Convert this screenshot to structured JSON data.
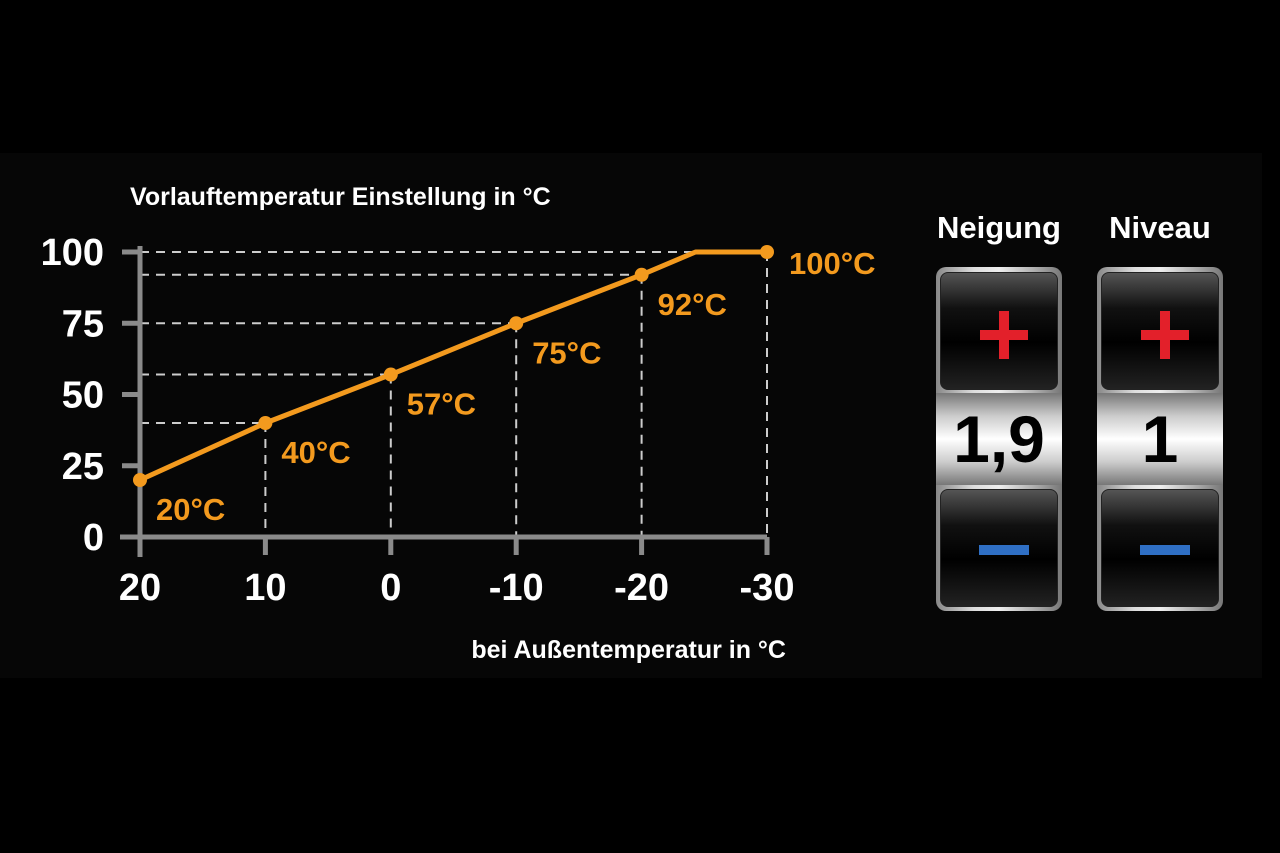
{
  "chart_data": {
    "type": "line",
    "title": "Vorlauftemperatur Einstellung in °C",
    "xlabel": "bei Außentemperatur in °C",
    "ylabel": "",
    "xlim": [
      20,
      -30
    ],
    "ylim": [
      0,
      100
    ],
    "x_ticks": [
      20,
      10,
      0,
      -10,
      -20,
      -30
    ],
    "x_tick_labels": [
      "20",
      "10",
      "0",
      "-10",
      "-20",
      "-30"
    ],
    "y_ticks": [
      0,
      25,
      50,
      75,
      100
    ],
    "y_tick_labels": [
      "0",
      "25",
      "50",
      "75",
      "100"
    ],
    "grid": "dashed guide lines to marked points",
    "series": [
      {
        "x": [
          20,
          10,
          0,
          -10,
          -20,
          -24.3,
          -30
        ],
        "y": [
          20,
          40,
          57,
          75,
          92,
          100,
          100
        ],
        "markers": [
          true,
          true,
          true,
          true,
          true,
          false,
          true
        ],
        "color": "#f39a1e"
      }
    ],
    "point_labels": [
      {
        "x": 20,
        "y": 20,
        "text": "20°C"
      },
      {
        "x": 10,
        "y": 40,
        "text": "40°C"
      },
      {
        "x": 0,
        "y": 57,
        "text": "57°C"
      },
      {
        "x": -10,
        "y": 75,
        "text": "75°C"
      },
      {
        "x": -20,
        "y": 92,
        "text": "92°C"
      },
      {
        "x": -30,
        "y": 100,
        "text": "100°C"
      }
    ]
  },
  "controls": [
    {
      "title": "Neigung",
      "value": "1,9",
      "plus_icon": "plus-icon",
      "minus_icon": "minus-icon"
    },
    {
      "title": "Niveau",
      "value": "1",
      "plus_icon": "plus-icon",
      "minus_icon": "minus-icon"
    }
  ],
  "colors": {
    "line": "#f39a1e",
    "plus": "#e3202a",
    "minus": "#2f6fc4",
    "axis": "#8a8a8a"
  }
}
